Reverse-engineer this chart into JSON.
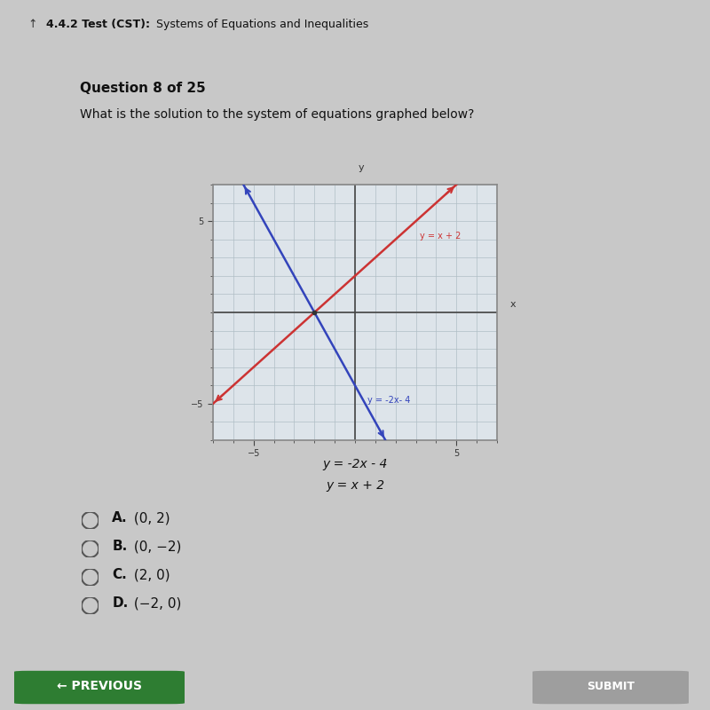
{
  "page_bg": "#c8c8c8",
  "header_bg": "#a8b4bc",
  "header_text": "4.4.2 Test (CST):  Systems of Equations and Inequalities",
  "question_label": "Question 8 of 25",
  "question_text": "What is the solution to the system of equations graphed below?",
  "eq1_label": "y = x + 2",
  "eq2_label": "y = -2x- 4",
  "eq1_label_below": "y = -2x - 4",
  "eq2_label_below": "y = x + 2",
  "line1_color": "#cc3333",
  "line2_color": "#3344bb",
  "graph_bg": "#dde4ea",
  "graph_border": "#888888",
  "axis_range": [
    -7,
    7
  ],
  "options_bold": [
    "A.",
    "B.",
    "C.",
    "D."
  ],
  "options_text": [
    " (0, 2)",
    " (0, −2)",
    " (2, 0)",
    " (−2, 0)"
  ],
  "bottom_button_color": "#2e7d32",
  "bottom_button_text": "← PREVIOUS",
  "submit_button_text": "SUBMIT",
  "submit_button_color": "#9e9e9e"
}
